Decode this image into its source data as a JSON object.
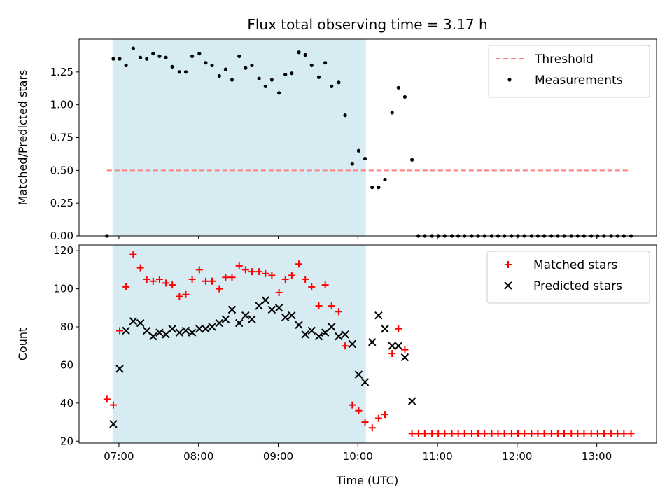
{
  "chart_data": {
    "title": "Flux total observing time = 3.17 h",
    "xlabel": "Time (UTC)",
    "x_unit": "hours UTC",
    "xlim": [
      6.5,
      13.75
    ],
    "xticks": [
      7,
      8,
      9,
      10,
      11,
      12,
      13
    ],
    "xtick_labels": [
      "07:00",
      "08:00",
      "09:00",
      "10:00",
      "11:00",
      "12:00",
      "13:00"
    ],
    "shaded_interval": {
      "x_start": 6.92,
      "x_end": 10.1,
      "color": "#add8e6"
    },
    "panels": [
      {
        "type": "scatter",
        "ylabel": "Matched/Predicted stars",
        "ylim": [
          0,
          1.5
        ],
        "yticks": [
          0.0,
          0.25,
          0.5,
          0.75,
          1.0,
          1.25
        ],
        "ytick_labels": [
          "0.00",
          "0.25",
          "0.50",
          "0.75",
          "1.00",
          "1.25"
        ],
        "legend_position": "top-right",
        "series": [
          {
            "name": "Threshold",
            "kind": "hline",
            "value": 0.5,
            "x_range": [
              6.85,
              13.43
            ],
            "color": "#ff7f7f",
            "style": "dashed"
          },
          {
            "name": "Measurements",
            "kind": "scatter",
            "marker": "dot",
            "color": "#000000",
            "points": [
              [
                6.85,
                0.0
              ],
              [
                6.93,
                1.35
              ],
              [
                7.01,
                1.35
              ],
              [
                7.09,
                1.3
              ],
              [
                7.18,
                1.43
              ],
              [
                7.27,
                1.36
              ],
              [
                7.35,
                1.35
              ],
              [
                7.43,
                1.39
              ],
              [
                7.51,
                1.37
              ],
              [
                7.59,
                1.36
              ],
              [
                7.67,
                1.29
              ],
              [
                7.76,
                1.25
              ],
              [
                7.84,
                1.25
              ],
              [
                7.92,
                1.37
              ],
              [
                8.01,
                1.39
              ],
              [
                8.09,
                1.32
              ],
              [
                8.17,
                1.3
              ],
              [
                8.26,
                1.22
              ],
              [
                8.34,
                1.27
              ],
              [
                8.42,
                1.19
              ],
              [
                8.51,
                1.37
              ],
              [
                8.59,
                1.28
              ],
              [
                8.67,
                1.3
              ],
              [
                8.76,
                1.2
              ],
              [
                8.84,
                1.14
              ],
              [
                8.92,
                1.19
              ],
              [
                9.01,
                1.09
              ],
              [
                9.09,
                1.23
              ],
              [
                9.17,
                1.24
              ],
              [
                9.26,
                1.4
              ],
              [
                9.34,
                1.38
              ],
              [
                9.42,
                1.3
              ],
              [
                9.51,
                1.21
              ],
              [
                9.59,
                1.32
              ],
              [
                9.67,
                1.14
              ],
              [
                9.76,
                1.17
              ],
              [
                9.84,
                0.92
              ],
              [
                9.93,
                0.55
              ],
              [
                10.01,
                0.65
              ],
              [
                10.09,
                0.59
              ],
              [
                10.18,
                0.37
              ],
              [
                10.26,
                0.37
              ],
              [
                10.34,
                0.43
              ],
              [
                10.43,
                0.94
              ],
              [
                10.51,
                1.13
              ],
              [
                10.59,
                1.06
              ],
              [
                10.68,
                0.58
              ],
              [
                10.76,
                0.0
              ],
              [
                10.84,
                0.0
              ],
              [
                10.93,
                0.0
              ],
              [
                11.01,
                0.0
              ],
              [
                11.09,
                0.0
              ],
              [
                11.18,
                0.0
              ],
              [
                11.26,
                0.0
              ],
              [
                11.34,
                0.0
              ],
              [
                11.43,
                0.0
              ],
              [
                11.51,
                0.0
              ],
              [
                11.59,
                0.0
              ],
              [
                11.68,
                0.0
              ],
              [
                11.76,
                0.0
              ],
              [
                11.84,
                0.0
              ],
              [
                11.93,
                0.0
              ],
              [
                12.01,
                0.0
              ],
              [
                12.09,
                0.0
              ],
              [
                12.18,
                0.0
              ],
              [
                12.26,
                0.0
              ],
              [
                12.34,
                0.0
              ],
              [
                12.43,
                0.0
              ],
              [
                12.51,
                0.0
              ],
              [
                12.59,
                0.0
              ],
              [
                12.68,
                0.0
              ],
              [
                12.76,
                0.0
              ],
              [
                12.84,
                0.0
              ],
              [
                12.93,
                0.0
              ],
              [
                13.01,
                0.0
              ],
              [
                13.09,
                0.0
              ],
              [
                13.18,
                0.0
              ],
              [
                13.26,
                0.0
              ],
              [
                13.34,
                0.0
              ],
              [
                13.43,
                0.0
              ]
            ]
          }
        ]
      },
      {
        "type": "scatter",
        "ylabel": "Count",
        "ylim": [
          19,
          123
        ],
        "yticks": [
          20,
          40,
          60,
          80,
          100,
          120
        ],
        "ytick_labels": [
          "20",
          "40",
          "60",
          "80",
          "100",
          "120"
        ],
        "legend_position": "top-right",
        "series": [
          {
            "name": "Matched stars",
            "kind": "scatter",
            "marker": "plus",
            "color": "#ff0000",
            "points": [
              [
                6.85,
                42
              ],
              [
                6.93,
                39
              ],
              [
                7.01,
                78
              ],
              [
                7.09,
                101
              ],
              [
                7.18,
                118
              ],
              [
                7.27,
                111
              ],
              [
                7.35,
                105
              ],
              [
                7.43,
                104
              ],
              [
                7.51,
                105
              ],
              [
                7.59,
                103
              ],
              [
                7.67,
                102
              ],
              [
                7.76,
                96
              ],
              [
                7.84,
                97
              ],
              [
                7.92,
                105
              ],
              [
                8.01,
                110
              ],
              [
                8.09,
                104
              ],
              [
                8.17,
                104
              ],
              [
                8.26,
                100
              ],
              [
                8.34,
                106
              ],
              [
                8.42,
                106
              ],
              [
                8.51,
                112
              ],
              [
                8.59,
                110
              ],
              [
                8.67,
                109
              ],
              [
                8.76,
                109
              ],
              [
                8.84,
                108
              ],
              [
                8.92,
                107
              ],
              [
                9.01,
                98
              ],
              [
                9.09,
                105
              ],
              [
                9.17,
                107
              ],
              [
                9.26,
                113
              ],
              [
                9.34,
                105
              ],
              [
                9.42,
                101
              ],
              [
                9.51,
                91
              ],
              [
                9.59,
                102
              ],
              [
                9.67,
                91
              ],
              [
                9.76,
                88
              ],
              [
                9.84,
                70
              ],
              [
                9.93,
                39
              ],
              [
                10.01,
                36
              ],
              [
                10.09,
                30
              ],
              [
                10.18,
                27
              ],
              [
                10.26,
                32
              ],
              [
                10.34,
                34
              ],
              [
                10.43,
                66
              ],
              [
                10.51,
                79
              ],
              [
                10.59,
                68
              ],
              [
                10.68,
                24
              ],
              [
                10.76,
                24
              ],
              [
                10.84,
                24
              ],
              [
                10.93,
                24
              ],
              [
                11.01,
                24
              ],
              [
                11.09,
                24
              ],
              [
                11.18,
                24
              ],
              [
                11.26,
                24
              ],
              [
                11.34,
                24
              ],
              [
                11.43,
                24
              ],
              [
                11.51,
                24
              ],
              [
                11.59,
                24
              ],
              [
                11.68,
                24
              ],
              [
                11.76,
                24
              ],
              [
                11.84,
                24
              ],
              [
                11.93,
                24
              ],
              [
                12.01,
                24
              ],
              [
                12.09,
                24
              ],
              [
                12.18,
                24
              ],
              [
                12.26,
                24
              ],
              [
                12.34,
                24
              ],
              [
                12.43,
                24
              ],
              [
                12.51,
                24
              ],
              [
                12.59,
                24
              ],
              [
                12.68,
                24
              ],
              [
                12.76,
                24
              ],
              [
                12.84,
                24
              ],
              [
                12.93,
                24
              ],
              [
                13.01,
                24
              ],
              [
                13.09,
                24
              ],
              [
                13.18,
                24
              ],
              [
                13.26,
                24
              ],
              [
                13.34,
                24
              ],
              [
                13.43,
                24
              ]
            ]
          },
          {
            "name": "Predicted stars",
            "kind": "scatter",
            "marker": "x",
            "color": "#000000",
            "points": [
              [
                6.93,
                29
              ],
              [
                7.01,
                58
              ],
              [
                7.09,
                78
              ],
              [
                7.18,
                83
              ],
              [
                7.27,
                82
              ],
              [
                7.35,
                78
              ],
              [
                7.43,
                75
              ],
              [
                7.51,
                77
              ],
              [
                7.59,
                76
              ],
              [
                7.67,
                79
              ],
              [
                7.76,
                77
              ],
              [
                7.84,
                78
              ],
              [
                7.92,
                77
              ],
              [
                8.01,
                79
              ],
              [
                8.09,
                79
              ],
              [
                8.17,
                80
              ],
              [
                8.26,
                82
              ],
              [
                8.34,
                84
              ],
              [
                8.42,
                89
              ],
              [
                8.51,
                82
              ],
              [
                8.59,
                86
              ],
              [
                8.67,
                84
              ],
              [
                8.76,
                91
              ],
              [
                8.84,
                94
              ],
              [
                8.92,
                89
              ],
              [
                9.01,
                90
              ],
              [
                9.09,
                85
              ],
              [
                9.17,
                86
              ],
              [
                9.26,
                81
              ],
              [
                9.34,
                76
              ],
              [
                9.42,
                78
              ],
              [
                9.51,
                75
              ],
              [
                9.59,
                77
              ],
              [
                9.67,
                80
              ],
              [
                9.76,
                75
              ],
              [
                9.84,
                76
              ],
              [
                9.93,
                71
              ],
              [
                10.01,
                55
              ],
              [
                10.09,
                51
              ],
              [
                10.18,
                72
              ],
              [
                10.26,
                86
              ],
              [
                10.34,
                79
              ],
              [
                10.43,
                70
              ],
              [
                10.51,
                70
              ],
              [
                10.59,
                64
              ],
              [
                10.68,
                41
              ]
            ]
          }
        ]
      }
    ]
  }
}
